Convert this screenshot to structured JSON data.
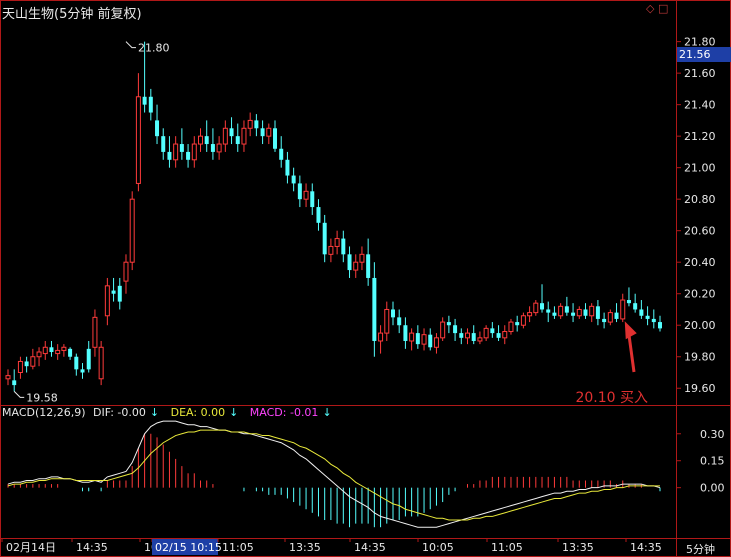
{
  "header": {
    "title": "天山生物(5分钟 前复权)",
    "icons": [
      "diamond-icon",
      "square-icon"
    ]
  },
  "macd_legend": {
    "params": "MACD(12,26,9)",
    "dif": "DIF: -0.00",
    "dea": "DEA: 0.00",
    "macd": "MACD: -0.01",
    "arrow": "↓"
  },
  "period_label": "5分钟",
  "current_price": "21.56",
  "colors": {
    "background": "#000000",
    "frame": "#b01818",
    "up": "#ff3b3b",
    "down": "#54ffff",
    "dif_line": "#f0f0f0",
    "dea_line": "#e8e83a",
    "macd_label": "#ff44ff",
    "annotation": "#e03030",
    "axis_text": "#e8e8e8",
    "selected_date_bg": "#1e3fa6"
  },
  "chart_data": [
    {
      "type": "candlestick",
      "title": "天山生物(5分钟 前复权)",
      "ylim": [
        19.5,
        21.95
      ],
      "yticks": [
        "21.80",
        "21.60",
        "21.40",
        "21.20",
        "21.00",
        "20.80",
        "20.60",
        "20.40",
        "20.20",
        "20.00",
        "19.80",
        "19.60"
      ],
      "annotations": [
        {
          "text": "21.80",
          "x_index": 19,
          "y": 21.8,
          "kind": "high"
        },
        {
          "text": "19.58",
          "x_index": 1,
          "y": 19.58,
          "kind": "low"
        },
        {
          "text": "20.10 买入",
          "x_index": 99,
          "y": 20.0,
          "kind": "arrow"
        }
      ],
      "candles": [
        [
          19.66,
          19.72,
          19.62,
          19.68
        ],
        [
          19.65,
          19.72,
          19.58,
          19.62
        ],
        [
          19.7,
          19.8,
          19.66,
          19.77
        ],
        [
          19.77,
          19.8,
          19.7,
          19.74
        ],
        [
          19.74,
          19.85,
          19.72,
          19.8
        ],
        [
          19.8,
          19.86,
          19.74,
          19.83
        ],
        [
          19.82,
          19.9,
          19.78,
          19.86
        ],
        [
          19.86,
          19.9,
          19.8,
          19.83
        ],
        [
          19.82,
          19.88,
          19.78,
          19.84
        ],
        [
          19.84,
          19.88,
          19.8,
          19.86
        ],
        [
          19.85,
          19.86,
          19.78,
          19.8
        ],
        [
          19.8,
          19.82,
          19.68,
          19.72
        ],
        [
          19.72,
          19.76,
          19.66,
          19.7
        ],
        [
          19.85,
          19.9,
          19.7,
          19.72
        ],
        [
          19.86,
          20.1,
          19.8,
          20.05
        ],
        [
          19.66,
          19.9,
          19.62,
          19.86
        ],
        [
          20.06,
          20.3,
          20.0,
          20.25
        ],
        [
          20.22,
          20.3,
          20.15,
          20.2
        ],
        [
          20.25,
          20.3,
          20.1,
          20.15
        ],
        [
          20.28,
          20.45,
          20.2,
          20.4
        ],
        [
          20.4,
          20.85,
          20.35,
          20.8
        ],
        [
          20.9,
          21.6,
          20.85,
          21.45
        ],
        [
          21.45,
          21.8,
          21.35,
          21.4
        ],
        [
          21.45,
          21.5,
          21.3,
          21.35
        ],
        [
          21.3,
          21.4,
          21.15,
          21.2
        ],
        [
          21.2,
          21.25,
          21.05,
          21.1
        ],
        [
          21.1,
          21.2,
          21.0,
          21.05
        ],
        [
          21.05,
          21.2,
          21.0,
          21.15
        ],
        [
          21.15,
          21.25,
          21.05,
          21.1
        ],
        [
          21.1,
          21.15,
          21.0,
          21.05
        ],
        [
          21.05,
          21.2,
          21.0,
          21.15
        ],
        [
          21.15,
          21.25,
          21.1,
          21.2
        ],
        [
          21.2,
          21.3,
          21.1,
          21.15
        ],
        [
          21.15,
          21.25,
          21.05,
          21.1
        ],
        [
          21.1,
          21.2,
          21.05,
          21.15
        ],
        [
          21.15,
          21.3,
          21.1,
          21.25
        ],
        [
          21.25,
          21.32,
          21.15,
          21.2
        ],
        [
          21.2,
          21.28,
          21.1,
          21.15
        ],
        [
          21.15,
          21.3,
          21.1,
          21.25
        ],
        [
          21.25,
          21.35,
          21.2,
          21.3
        ],
        [
          21.3,
          21.34,
          21.2,
          21.25
        ],
        [
          21.25,
          21.3,
          21.15,
          21.2
        ],
        [
          21.2,
          21.28,
          21.15,
          21.25
        ],
        [
          21.25,
          21.3,
          21.1,
          21.12
        ],
        [
          21.12,
          21.2,
          21.0,
          21.05
        ],
        [
          21.05,
          21.1,
          20.9,
          20.95
        ],
        [
          20.95,
          21.0,
          20.85,
          20.9
        ],
        [
          20.9,
          20.95,
          20.75,
          20.8
        ],
        [
          20.8,
          20.9,
          20.75,
          20.85
        ],
        [
          20.85,
          20.9,
          20.7,
          20.75
        ],
        [
          20.75,
          20.8,
          20.6,
          20.65
        ],
        [
          20.65,
          20.7,
          20.4,
          20.45
        ],
        [
          20.45,
          20.55,
          20.4,
          20.5
        ],
        [
          20.5,
          20.6,
          20.45,
          20.55
        ],
        [
          20.55,
          20.6,
          20.4,
          20.45
        ],
        [
          20.45,
          20.5,
          20.3,
          20.35
        ],
        [
          20.35,
          20.45,
          20.3,
          20.4
        ],
        [
          20.4,
          20.5,
          20.35,
          20.45
        ],
        [
          20.45,
          20.55,
          20.25,
          20.3
        ],
        [
          20.3,
          20.4,
          19.8,
          19.9
        ],
        [
          19.9,
          20.0,
          19.82,
          19.95
        ],
        [
          19.95,
          20.15,
          19.9,
          20.1
        ],
        [
          20.1,
          20.15,
          20.0,
          20.05
        ],
        [
          20.05,
          20.1,
          19.95,
          20.0
        ],
        [
          20.0,
          20.05,
          19.85,
          19.9
        ],
        [
          19.9,
          19.98,
          19.84,
          19.95
        ],
        [
          19.95,
          20.0,
          19.85,
          19.88
        ],
        [
          19.88,
          19.98,
          19.84,
          19.94
        ],
        [
          19.94,
          19.98,
          19.84,
          19.86
        ],
        [
          19.86,
          19.95,
          19.82,
          19.92
        ],
        [
          19.92,
          20.05,
          19.9,
          20.02
        ],
        [
          20.02,
          20.06,
          19.95,
          20.0
        ],
        [
          20.0,
          20.04,
          19.9,
          19.95
        ],
        [
          19.95,
          19.98,
          19.88,
          19.92
        ],
        [
          19.92,
          19.98,
          19.88,
          19.95
        ],
        [
          19.95,
          20.0,
          19.88,
          19.9
        ],
        [
          19.9,
          19.96,
          19.88,
          19.92
        ],
        [
          19.92,
          20.0,
          19.9,
          19.98
        ],
        [
          19.98,
          20.02,
          19.92,
          19.95
        ],
        [
          19.95,
          20.0,
          19.9,
          19.92
        ],
        [
          19.92,
          20.0,
          19.88,
          19.96
        ],
        [
          19.96,
          20.04,
          19.94,
          20.02
        ],
        [
          20.02,
          20.06,
          19.96,
          20.0
        ],
        [
          20.0,
          20.08,
          19.98,
          20.06
        ],
        [
          20.06,
          20.12,
          20.02,
          20.08
        ],
        [
          20.08,
          20.16,
          20.06,
          20.14
        ],
        [
          20.14,
          20.26,
          20.08,
          20.1
        ],
        [
          20.1,
          20.15,
          20.02,
          20.08
        ],
        [
          20.08,
          20.12,
          20.04,
          20.06
        ],
        [
          20.06,
          20.14,
          20.04,
          20.12
        ],
        [
          20.12,
          20.18,
          20.06,
          20.08
        ],
        [
          20.08,
          20.14,
          20.02,
          20.06
        ],
        [
          20.06,
          20.12,
          20.04,
          20.1
        ],
        [
          20.1,
          20.14,
          20.04,
          20.06
        ],
        [
          20.06,
          20.14,
          20.02,
          20.12
        ],
        [
          20.12,
          20.16,
          20.0,
          20.04
        ],
        [
          20.04,
          20.08,
          19.98,
          20.02
        ],
        [
          20.02,
          20.1,
          20.0,
          20.08
        ],
        [
          20.08,
          20.14,
          20.02,
          20.04
        ],
        [
          20.04,
          20.2,
          20.02,
          20.16
        ],
        [
          20.16,
          20.24,
          20.12,
          20.14
        ],
        [
          20.14,
          20.2,
          20.08,
          20.1
        ],
        [
          20.1,
          20.16,
          20.04,
          20.06
        ],
        [
          20.06,
          20.12,
          20.0,
          20.04
        ],
        [
          20.04,
          20.1,
          19.98,
          20.02
        ],
        [
          20.02,
          20.06,
          19.96,
          19.98
        ]
      ]
    },
    {
      "type": "line",
      "title": "MACD(12,26,9)",
      "ylim": [
        -0.28,
        0.46
      ],
      "yticks": [
        "0.30",
        "0.15",
        "0.00"
      ],
      "x_tick_labels": [
        "02月14日",
        "14:35",
        "10:15",
        "02/15 10:15",
        "11:05",
        "13:35",
        "14:35",
        "10:05",
        "11:05",
        "13:35",
        "14:35"
      ],
      "series": [
        {
          "name": "DIF",
          "values": [
            0.02,
            0.03,
            0.03,
            0.04,
            0.04,
            0.05,
            0.05,
            0.06,
            0.06,
            0.05,
            0.05,
            0.04,
            0.03,
            0.03,
            0.04,
            0.03,
            0.06,
            0.07,
            0.08,
            0.09,
            0.14,
            0.22,
            0.3,
            0.34,
            0.36,
            0.37,
            0.37,
            0.37,
            0.36,
            0.35,
            0.35,
            0.34,
            0.34,
            0.33,
            0.32,
            0.32,
            0.31,
            0.31,
            0.3,
            0.3,
            0.29,
            0.28,
            0.27,
            0.26,
            0.25,
            0.23,
            0.21,
            0.18,
            0.16,
            0.13,
            0.1,
            0.07,
            0.04,
            0.01,
            -0.02,
            -0.05,
            -0.07,
            -0.09,
            -0.11,
            -0.14,
            -0.16,
            -0.17,
            -0.18,
            -0.19,
            -0.2,
            -0.21,
            -0.22,
            -0.22,
            -0.22,
            -0.22,
            -0.21,
            -0.2,
            -0.19,
            -0.18,
            -0.17,
            -0.16,
            -0.15,
            -0.14,
            -0.13,
            -0.12,
            -0.11,
            -0.1,
            -0.09,
            -0.08,
            -0.07,
            -0.06,
            -0.05,
            -0.04,
            -0.03,
            -0.03,
            -0.02,
            -0.02,
            -0.01,
            -0.01,
            0.0,
            0.0,
            0.01,
            0.01,
            0.01,
            0.02,
            0.02,
            0.02,
            0.02,
            0.01,
            0.01,
            0.0
          ]
        },
        {
          "name": "DEA",
          "values": [
            0.01,
            0.02,
            0.02,
            0.03,
            0.03,
            0.04,
            0.04,
            0.05,
            0.05,
            0.05,
            0.05,
            0.04,
            0.04,
            0.04,
            0.04,
            0.04,
            0.04,
            0.05,
            0.06,
            0.07,
            0.08,
            0.11,
            0.15,
            0.19,
            0.22,
            0.25,
            0.27,
            0.29,
            0.3,
            0.31,
            0.31,
            0.32,
            0.32,
            0.32,
            0.32,
            0.32,
            0.31,
            0.31,
            0.31,
            0.3,
            0.3,
            0.29,
            0.29,
            0.28,
            0.27,
            0.26,
            0.25,
            0.23,
            0.22,
            0.2,
            0.18,
            0.16,
            0.13,
            0.11,
            0.08,
            0.06,
            0.03,
            0.01,
            -0.01,
            -0.03,
            -0.05,
            -0.07,
            -0.09,
            -0.1,
            -0.12,
            -0.13,
            -0.14,
            -0.15,
            -0.16,
            -0.17,
            -0.17,
            -0.18,
            -0.18,
            -0.18,
            -0.18,
            -0.17,
            -0.17,
            -0.16,
            -0.16,
            -0.15,
            -0.14,
            -0.13,
            -0.12,
            -0.11,
            -0.1,
            -0.09,
            -0.08,
            -0.07,
            -0.06,
            -0.06,
            -0.05,
            -0.04,
            -0.03,
            -0.03,
            -0.02,
            -0.02,
            -0.01,
            -0.01,
            0.0,
            0.0,
            0.01,
            0.01,
            0.01,
            0.01,
            0.01,
            0.01
          ]
        }
      ]
    }
  ]
}
